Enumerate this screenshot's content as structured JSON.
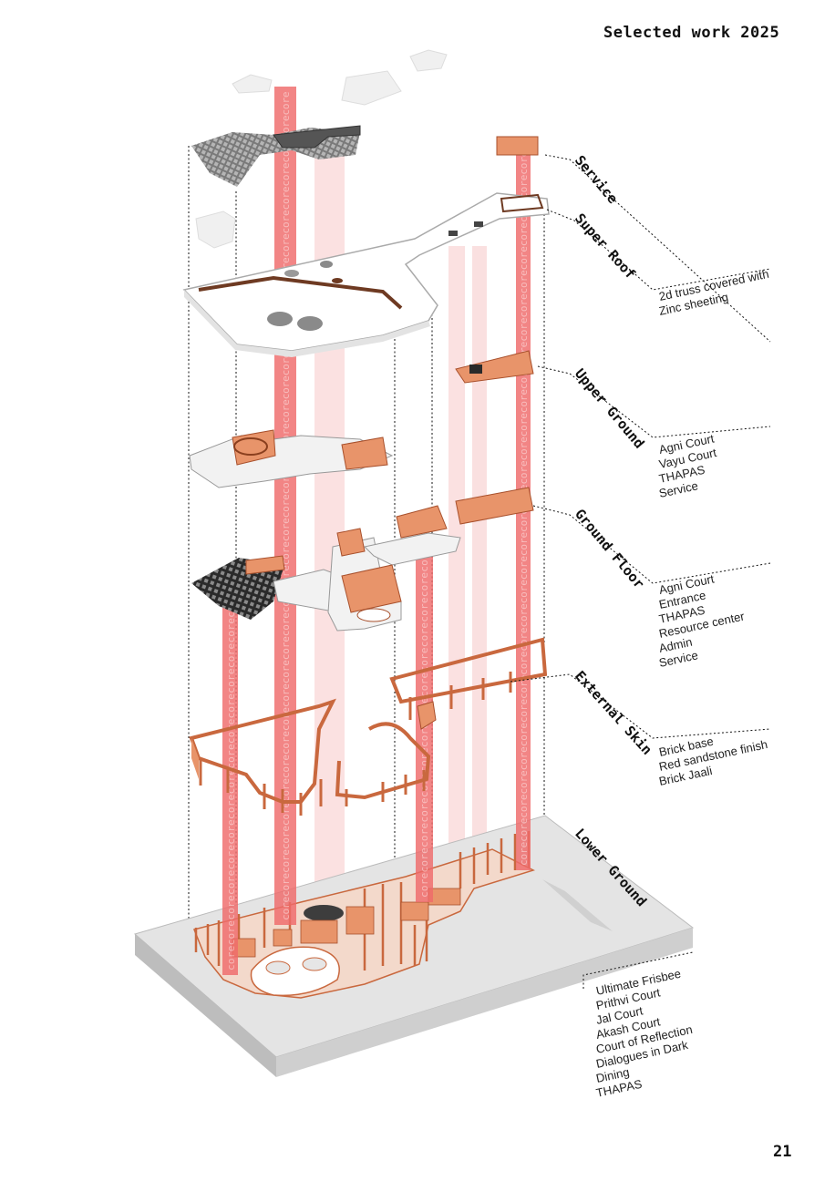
{
  "header": {
    "title": "Selected work 2025"
  },
  "page_number": "21",
  "core_watermark": "core",
  "colors": {
    "terracotta": "#e8946a",
    "terracotta_dark": "#c9683e",
    "core": "#ef6a6a",
    "slab": "#f2f2f2",
    "base": "#d7d7d7"
  },
  "layers": [
    {
      "title": "Service",
      "items": []
    },
    {
      "title": "Super Roof",
      "items": [
        "2d truss covered with",
        "Zinc sheeting"
      ]
    },
    {
      "title": "Upper Ground",
      "items": [
        "Agni Court",
        "Vayu Court",
        "THAPAS",
        "Service"
      ]
    },
    {
      "title": "Ground Floor",
      "items": [
        "Agni Court",
        "Entrance",
        "THAPAS",
        "Resource center",
        "Admin",
        "Service"
      ]
    },
    {
      "title": "External Skin",
      "items": [
        "Brick base",
        "Red sandstone finish",
        "Brick Jaali"
      ]
    },
    {
      "title": "Lower Ground",
      "items": [
        "Ultimate Frisbee",
        "Prithvi Court",
        "Jal Court",
        "Akash Court",
        "Court of Reflection",
        "Dialogues in Dark",
        "Dining",
        "THAPAS"
      ]
    }
  ]
}
